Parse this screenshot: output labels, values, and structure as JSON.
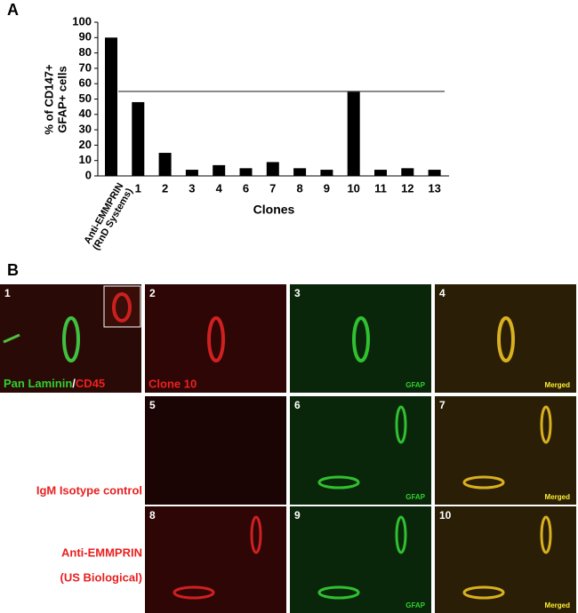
{
  "panel_labels": [
    "A",
    "B"
  ],
  "chart_data": {
    "type": "bar",
    "y_label": [
      "% of CD147+",
      "GFAP+ cells"
    ],
    "x_label": "Clones",
    "categories": [
      "Anti-EMMPRIN (RnD Systems)",
      "1",
      "2",
      "3",
      "4",
      "6",
      "7",
      "8",
      "9",
      "10",
      "11",
      "12",
      "13"
    ],
    "values": [
      90,
      48,
      15,
      4,
      7,
      5,
      9,
      5,
      4,
      55,
      4,
      5,
      4
    ],
    "color": "#000000",
    "reference_line": 55,
    "ylim": [
      0,
      100
    ],
    "yticks": [
      0,
      10,
      20,
      30,
      40,
      50,
      60,
      70,
      80,
      90,
      100
    ]
  },
  "panel_b": {
    "tiles": [
      {
        "number": "1"
      },
      {
        "number": "2",
        "caption": "Clone 10"
      },
      {
        "number": "3",
        "caption": "GFAP"
      },
      {
        "number": "4",
        "caption": "Merged"
      },
      {
        "number": "5"
      },
      {
        "number": "6",
        "caption": "GFAP"
      },
      {
        "number": "7",
        "caption": "Merged"
      },
      {
        "number": "8"
      },
      {
        "number": "9",
        "caption": "GFAP"
      },
      {
        "number": "10",
        "caption": "Merged"
      }
    ],
    "stain_labels": [
      "Pan Laminin",
      "/",
      "CD45"
    ],
    "row_labels": [
      "IgM Isotype control",
      "Anti-EMMPRIN",
      "(US Biological)"
    ]
  }
}
